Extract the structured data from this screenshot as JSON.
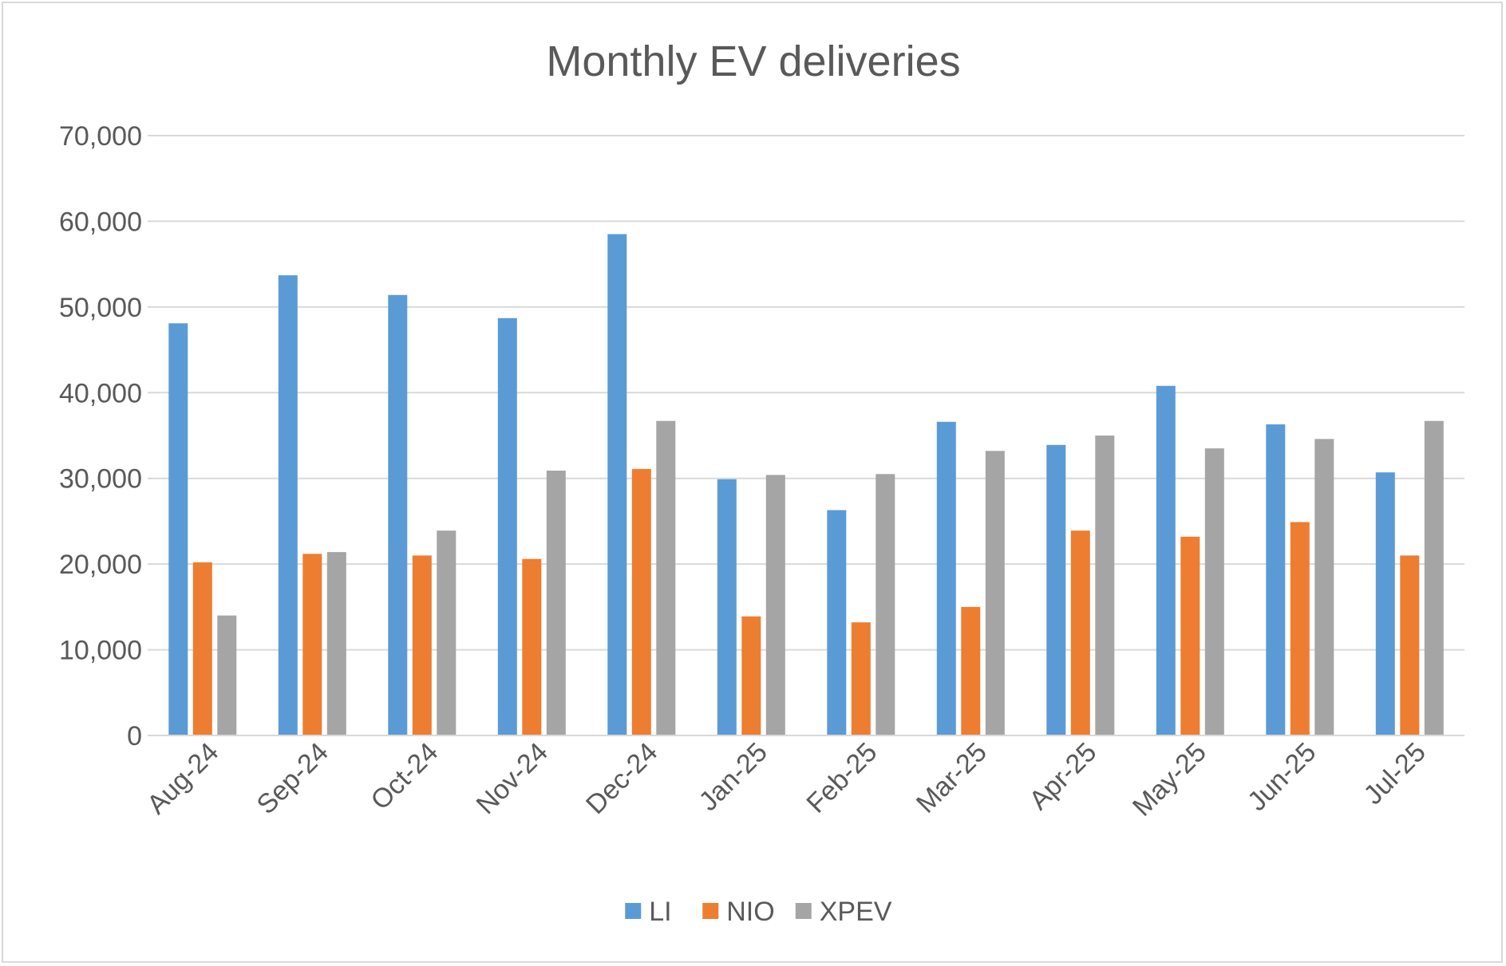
{
  "chart_data": {
    "type": "bar",
    "title": "Monthly EV deliveries",
    "xlabel": "",
    "ylabel": "",
    "ylim": [
      0,
      70000
    ],
    "yticks": [
      0,
      10000,
      20000,
      30000,
      40000,
      50000,
      60000,
      70000
    ],
    "ytick_labels": [
      "0",
      "10,000",
      "20,000",
      "30,000",
      "40,000",
      "50,000",
      "60,000",
      "70,000"
    ],
    "grid": true,
    "legend_position": "bottom",
    "categories": [
      "Aug-24",
      "Sep-24",
      "Oct-24",
      "Nov-24",
      "Dec-24",
      "Jan-25",
      "Feb-25",
      "Mar-25",
      "Apr-25",
      "May-25",
      "Jun-25",
      "Jul-25"
    ],
    "series": [
      {
        "name": "LI",
        "color": "#5b9bd5",
        "values": [
          48100,
          53700,
          51400,
          48700,
          58500,
          29900,
          26300,
          36600,
          33900,
          40800,
          36300,
          30700
        ]
      },
      {
        "name": "NIO",
        "color": "#ed7d31",
        "values": [
          20200,
          21200,
          21000,
          20600,
          31100,
          13900,
          13200,
          15000,
          23900,
          23200,
          24900,
          21000
        ]
      },
      {
        "name": "XPEV",
        "color": "#a5a5a5",
        "values": [
          14000,
          21400,
          23900,
          30900,
          36700,
          30400,
          30500,
          33200,
          35000,
          33500,
          34600,
          36700
        ]
      }
    ]
  }
}
